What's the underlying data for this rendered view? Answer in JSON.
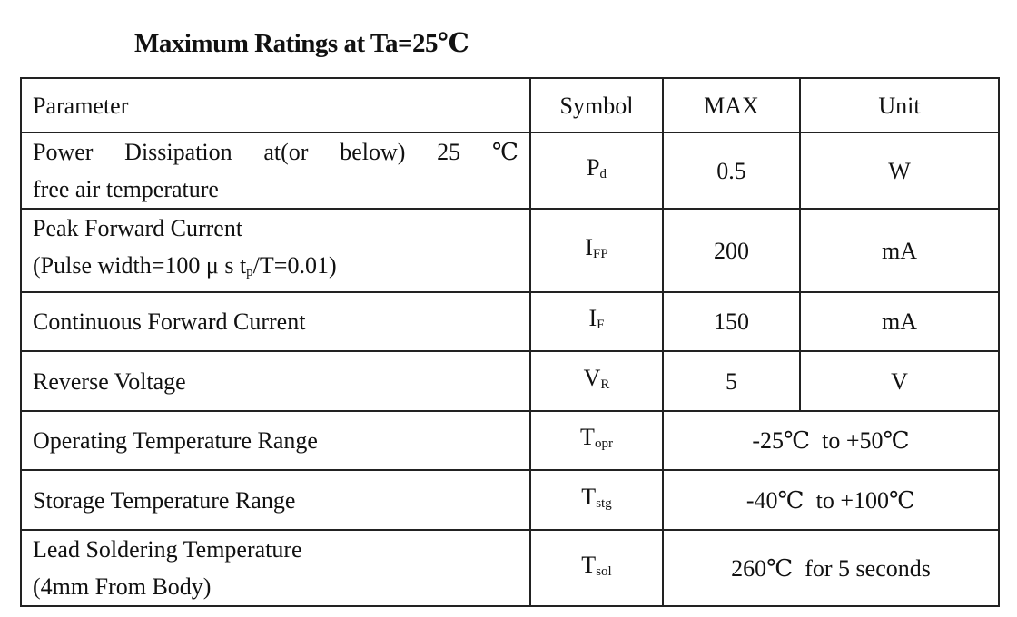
{
  "title": "Maximum Ratings at Ta=25℃",
  "table": {
    "header": [
      "Parameter",
      "Symbol",
      "MAX",
      "Unit"
    ],
    "rows": [
      {
        "parameter": [
          "Power Dissipation at(or below) 25 ℃",
          "free air temperature"
        ],
        "symbol": {
          "base": "P",
          "sub": "d"
        },
        "max": "0.5",
        "unit": "W"
      },
      {
        "parameter": [
          "Peak Forward Current",
          {
            "before": "(Pulse width=100 μ s t",
            "sub": "p",
            "after": "/T=0.01)"
          }
        ],
        "symbol": {
          "base": "I",
          "sub": "FP"
        },
        "max": "200",
        "unit": "mA"
      },
      {
        "parameter": [
          "Continuous Forward Current"
        ],
        "symbol": {
          "base": "I",
          "sub": "F"
        },
        "max": "150",
        "unit": "mA"
      },
      {
        "parameter": [
          "Reverse Voltage"
        ],
        "symbol": {
          "base": "V",
          "sub": "R"
        },
        "max": "5",
        "unit": "V"
      },
      {
        "parameter": [
          "Operating Temperature Range"
        ],
        "symbol": {
          "base": "T",
          "sub": "opr"
        },
        "range": "-25℃  to +50℃"
      },
      {
        "parameter": [
          "Storage Temperature Range"
        ],
        "symbol": {
          "base": "T",
          "sub": "stg"
        },
        "range": "-40℃  to +100℃"
      },
      {
        "parameter": [
          "Lead Soldering Temperature",
          "(4mm From Body)"
        ],
        "symbol": {
          "base": "T",
          "sub": "sol"
        },
        "range": "260℃  for 5 seconds"
      }
    ]
  }
}
